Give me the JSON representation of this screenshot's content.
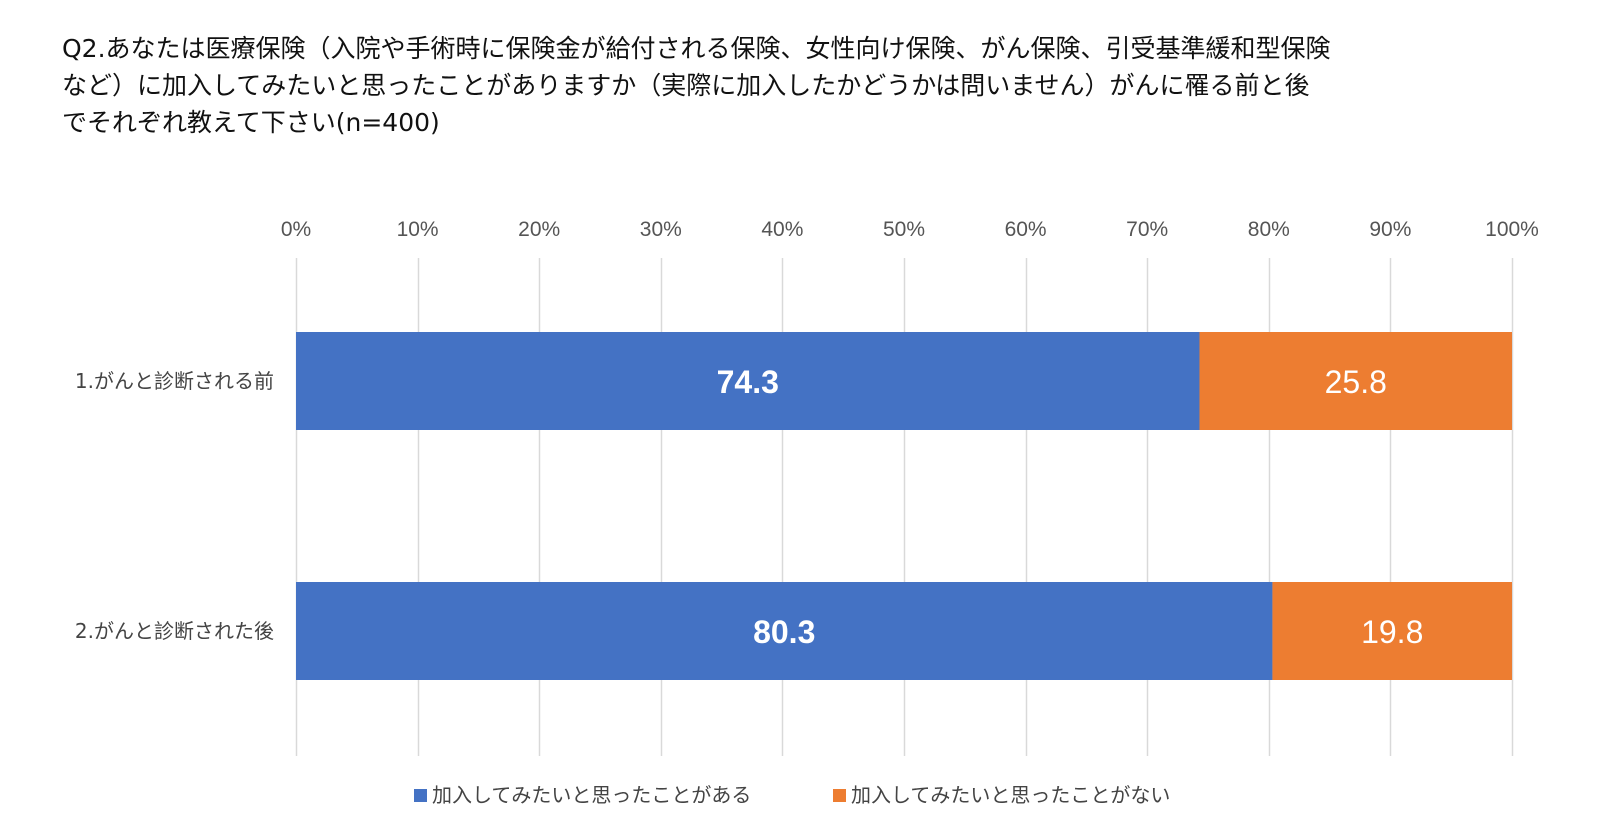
{
  "title_lines": [
    "Q2.あなたは医療保険（入院や手術時に保険金が給付される保険、女性向け保険、がん保険、引受基準緩和型保険",
    "など）に加入してみたいと思ったことがありますか（実際に加入したかどうかは問いません）がんに罹る前と後",
    "でそれぞれ教えて下さい(n=400)"
  ],
  "chart_data": {
    "type": "bar",
    "orientation": "horizontal",
    "stacked": true,
    "title": "Q2.あなたは医療保険（入院や手術時に保険金が給付される保険、女性向け保険、がん保険、引受基準緩和型保険など）に加入してみたいと思ったことがありますか（実際に加入したかどうかは問いません）がんに罹る前と後でそれぞれ教えて下さい(n=400)",
    "categories": [
      "1.がんと診断される前",
      "2.がんと診断された後"
    ],
    "series": [
      {
        "name": "加入してみたいと思ったことがある",
        "values": [
          74.3,
          80.3
        ],
        "color": "#4472c4"
      },
      {
        "name": "加入してみたいと思ったことがない",
        "values": [
          25.8,
          19.8
        ],
        "color": "#ed7d31"
      }
    ],
    "value_labels": [
      [
        "74.3",
        "25.8"
      ],
      [
        "80.3",
        "19.8"
      ]
    ],
    "xlim": [
      0,
      100
    ],
    "xticks": [
      0,
      10,
      20,
      30,
      40,
      50,
      60,
      70,
      80,
      90,
      100
    ],
    "xtick_labels": [
      "0%",
      "10%",
      "20%",
      "30%",
      "40%",
      "50%",
      "60%",
      "70%",
      "80%",
      "90%",
      "100%"
    ],
    "xaxis_position": "top",
    "grid": true,
    "grid_color": "#d9d9d9",
    "legend_position": "bottom"
  }
}
